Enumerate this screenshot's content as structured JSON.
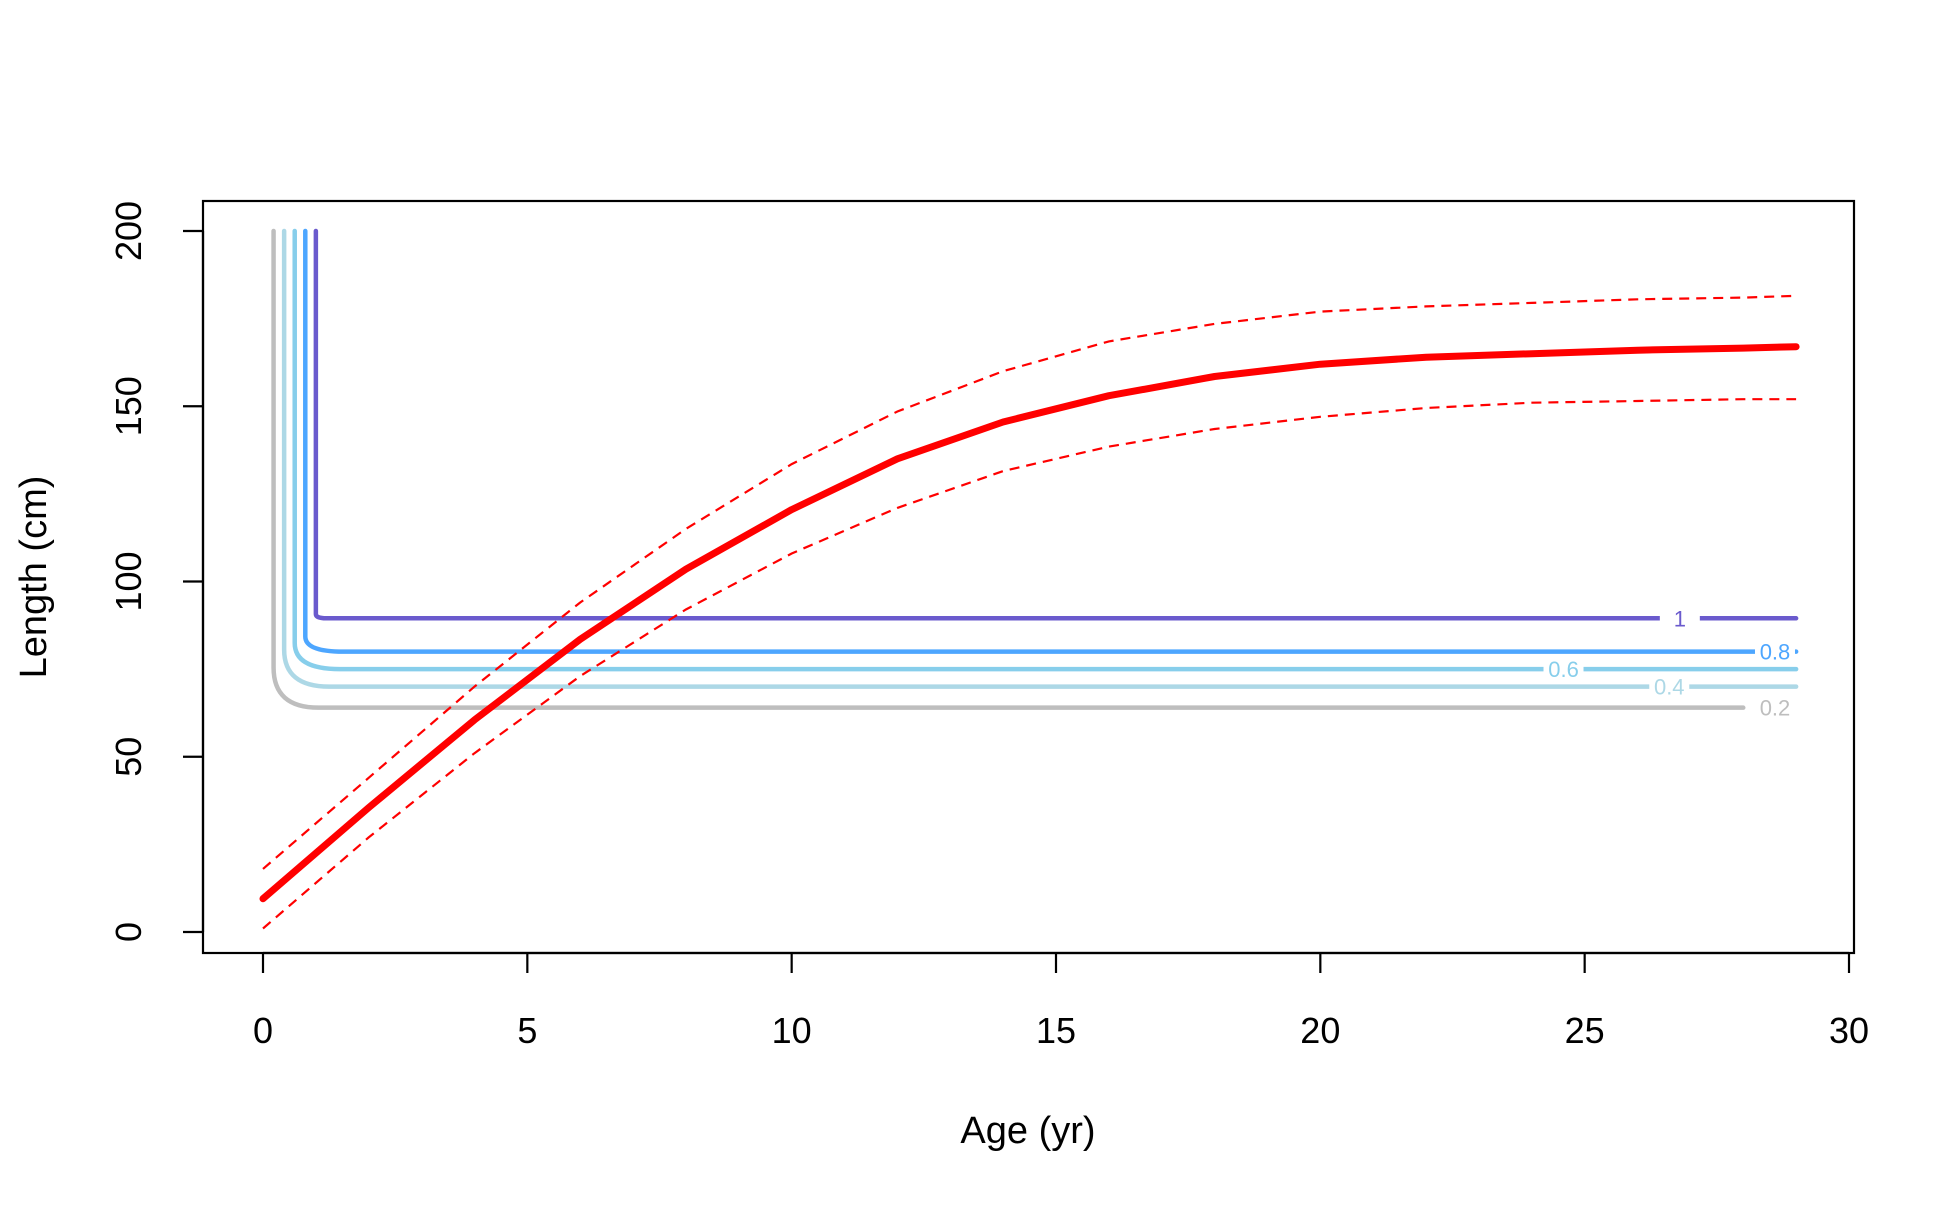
{
  "chart_data": {
    "type": "line",
    "title": "",
    "xlabel": "Age (yr)",
    "ylabel": "Length (cm)",
    "xlim": [
      -1.15,
      30.15
    ],
    "ylim": [
      -6.2,
      200
    ],
    "grid": false,
    "legend": "none",
    "x_ticks": [
      0,
      5,
      10,
      15,
      20,
      25,
      30
    ],
    "x_tick_labels": [
      "0",
      "5",
      "10",
      "15",
      "20",
      "25",
      "30"
    ],
    "y_ticks": [
      0,
      50,
      100,
      150,
      200
    ],
    "y_tick_labels": [
      "0",
      "50",
      "100",
      "150",
      "200"
    ],
    "growth_curve": {
      "color": "#ff0000",
      "mean": {
        "x": [
          0,
          2,
          4,
          6,
          8,
          10,
          12,
          14,
          16,
          18,
          20,
          22,
          24,
          26,
          28,
          29
        ],
        "y": [
          9.5,
          35.5,
          60.5,
          83.5,
          103.5,
          120.5,
          135.0,
          145.5,
          153.0,
          158.5,
          162.0,
          164.0,
          165.0,
          166.0,
          166.6,
          167.0
        ]
      },
      "upper": {
        "x": [
          0,
          2,
          4,
          6,
          8,
          10,
          12,
          14,
          16,
          18,
          20,
          22,
          24,
          26,
          28,
          29
        ],
        "y": [
          18.0,
          44.0,
          70.0,
          94.0,
          115.0,
          133.5,
          148.5,
          160.0,
          168.5,
          173.5,
          177.0,
          178.5,
          179.5,
          180.5,
          181.0,
          181.5
        ]
      },
      "lower": {
        "x": [
          0,
          2,
          4,
          6,
          8,
          10,
          12,
          14,
          16,
          18,
          20,
          22,
          24,
          26,
          28,
          29
        ],
        "y": [
          1.0,
          27.0,
          51.0,
          73.0,
          92.0,
          108.0,
          121.0,
          131.5,
          138.5,
          143.5,
          147.0,
          149.5,
          151.0,
          151.5,
          152.0,
          152.0
        ]
      }
    },
    "contours": [
      {
        "level": "0.2",
        "color": "#bebebe",
        "x_vertical": 0.2,
        "y_plateau": 64,
        "x_end": 28.0,
        "label_x": 28.6
      },
      {
        "level": "0.4",
        "color": "#add8e6",
        "x_vertical": 0.4,
        "y_plateau": 70,
        "x_end": 29.0,
        "label_x": 26.6
      },
      {
        "level": "0.6",
        "color": "#87ceeb",
        "x_vertical": 0.6,
        "y_plateau": 75,
        "x_end": 29.0,
        "label_x": 24.6
      },
      {
        "level": "0.8",
        "color": "#4da6ff",
        "x_vertical": 0.8,
        "y_plateau": 80,
        "x_end": 29.0,
        "label_x": 28.6
      },
      {
        "level": "1",
        "color": "#6a5acd",
        "x_vertical": 1.0,
        "y_plateau": 89.5,
        "x_end": 29.0,
        "label_x": 26.8
      }
    ]
  }
}
